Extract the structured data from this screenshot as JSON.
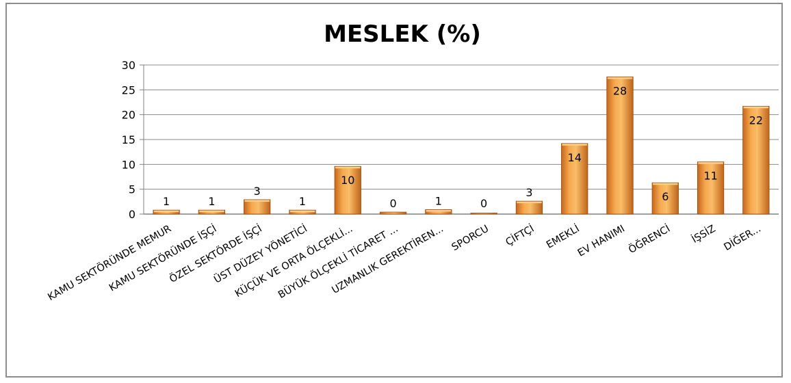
{
  "chart_data": {
    "type": "bar",
    "title": "MESLEK (%)",
    "xlabel": "",
    "ylabel": "",
    "ylim": [
      0,
      30
    ],
    "yticks": [
      0,
      5,
      10,
      15,
      20,
      25,
      30
    ],
    "grid": true,
    "legend": "none",
    "bar_color": "#f0a040",
    "categories": [
      "KAMU SEKTÖRÜNDE MEMUR",
      "KAMU SEKTÖRÜNDE İŞÇİ",
      "ÖZEL SEKTÖRDE İŞÇİ",
      "ÜST DÜZEY YÖNETİCİ",
      "KÜÇÜK VE ORTA ÖLÇEKLİ...",
      "BÜYÜK ÖLÇEKLİ TİCARET ...",
      "UZMANLIK GEREKTİREN...",
      "SPORCU",
      "ÇİFTÇİ",
      "EMEKLİ",
      "EV HANIMI",
      "ÖĞRENCİ",
      "İŞSİZ",
      "DİĞER..."
    ],
    "values": [
      0.8,
      0.8,
      2.9,
      0.8,
      9.6,
      0.4,
      0.9,
      0.2,
      2.6,
      14.2,
      27.6,
      6.3,
      10.5,
      21.7
    ],
    "data_labels": [
      "1",
      "1",
      "3",
      "1",
      "10",
      "0",
      "1",
      "0",
      "3",
      "14",
      "28",
      "6",
      "11",
      "22"
    ]
  }
}
